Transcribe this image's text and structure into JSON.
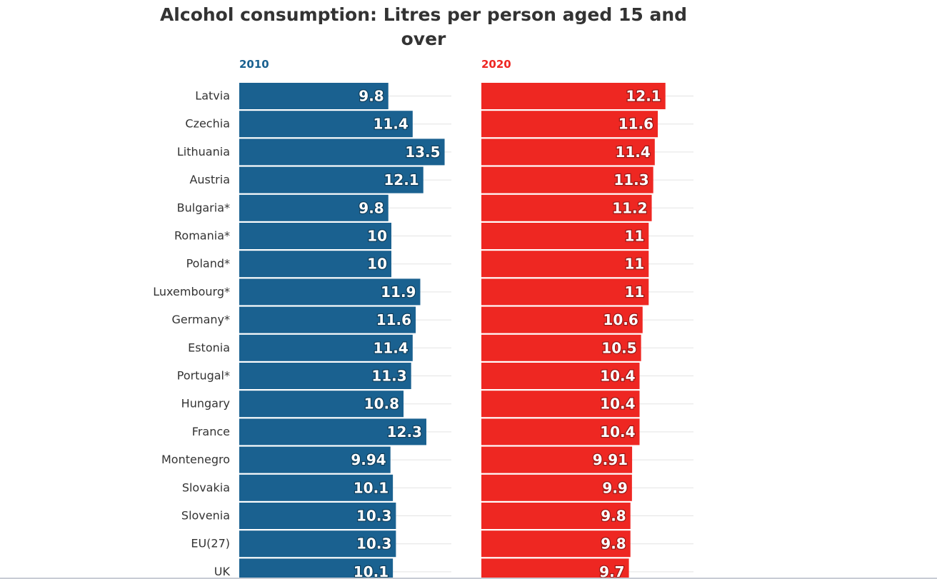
{
  "chart_data": {
    "type": "bar",
    "orientation": "horizontal",
    "title": "Alcohol consumption: Litres per person aged 15 and over",
    "categories": [
      "Latvia",
      "Czechia",
      "Lithuania",
      "Austria",
      "Bulgaria*",
      "Romania*",
      "Poland*",
      "Luxembourg*",
      "Germany*",
      "Estonia",
      "Portugal*",
      "Hungary",
      "France",
      "Montenegro",
      "Slovakia",
      "Slovenia",
      "EU(27)",
      "UK"
    ],
    "series": [
      {
        "name": "2010",
        "color": "#1a6190",
        "values": [
          9.8,
          11.4,
          13.5,
          12.1,
          9.8,
          10,
          10,
          11.9,
          11.6,
          11.4,
          11.3,
          10.8,
          12.3,
          9.94,
          10.1,
          10.3,
          10.3,
          10.1
        ]
      },
      {
        "name": "2020",
        "color": "#ee2722",
        "values": [
          12.1,
          11.6,
          11.4,
          11.3,
          11.2,
          11,
          11,
          11,
          10.6,
          10.5,
          10.4,
          10.4,
          10.4,
          9.91,
          9.9,
          9.8,
          9.8,
          9.7
        ]
      }
    ],
    "xlabel": "",
    "ylabel": "",
    "xlim": [
      0,
      14
    ],
    "grid": true,
    "data_labels": true
  }
}
